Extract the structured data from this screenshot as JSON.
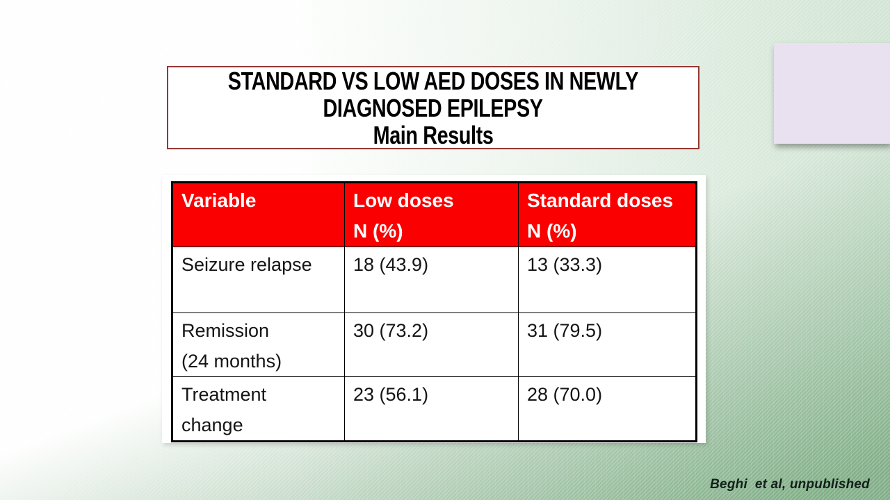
{
  "slide": {
    "title": {
      "lines": [
        "STANDARD VS LOW AED DOSES IN NEWLY",
        "DIAGNOSED EPILEPSY",
        "Main Results"
      ]
    },
    "citation": "Beghi  et al, unpublished",
    "colors": {
      "table_header_red": "#fb0000",
      "title_box_border": "#953735",
      "background_green": "#7fae85",
      "note_lavender": "#e9e1f0",
      "header_text": "#ffffff",
      "body_text": "#151515"
    },
    "table": {
      "header": [
        {
          "lines": [
            "Variable"
          ]
        },
        {
          "lines": [
            "Low doses",
            "N (%)"
          ]
        },
        {
          "lines": [
            "Standard doses",
            "N (%)"
          ]
        }
      ],
      "rows": [
        {
          "cells": [
            {
              "lines": [
                "Seizure relapse"
              ]
            },
            {
              "lines": [
                "18 (43.9)"
              ]
            },
            {
              "lines": [
                "13 (33.3)"
              ]
            }
          ]
        },
        {
          "cells": [
            {
              "lines": [
                "Remission",
                "(24 months)"
              ]
            },
            {
              "lines": [
                "30 (73.2)"
              ]
            },
            {
              "lines": [
                "31 (79.5)"
              ]
            }
          ]
        },
        {
          "cells": [
            {
              "lines": [
                "Treatment",
                "change"
              ]
            },
            {
              "lines": [
                "23 (56.1)"
              ]
            },
            {
              "lines": [
                "28 (70.0)"
              ]
            }
          ]
        }
      ]
    }
  },
  "chart_data": {
    "type": "table",
    "title": "STANDARD VS LOW AED DOSES IN NEWLY DIAGNOSED EPILEPSY — Main Results",
    "columns": [
      "Variable",
      "Low doses N (%)",
      "Standard doses N (%)"
    ],
    "rows": [
      [
        "Seizure relapse",
        "18 (43.9)",
        "13 (33.3)"
      ],
      [
        "Remission (24 months)",
        "30 (73.2)",
        "31 (79.5)"
      ],
      [
        "Treatment change",
        "23 (56.1)",
        "28 (70.0)"
      ]
    ],
    "values": {
      "low_doses": {
        "seizure_relapse_n": 18,
        "seizure_relapse_pct": 43.9,
        "remission_24mo_n": 30,
        "remission_24mo_pct": 73.2,
        "treatment_change_n": 23,
        "treatment_change_pct": 56.1
      },
      "standard_doses": {
        "seizure_relapse_n": 13,
        "seizure_relapse_pct": 33.3,
        "remission_24mo_n": 31,
        "remission_24mo_pct": 79.5,
        "treatment_change_n": 28,
        "treatment_change_pct": 70.0
      }
    },
    "source": "Beghi et al, unpublished"
  }
}
